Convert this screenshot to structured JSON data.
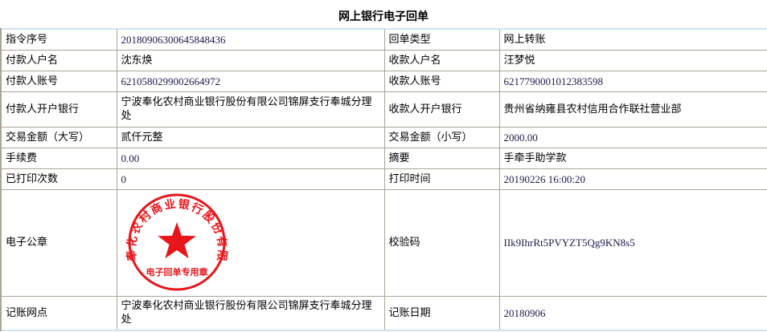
{
  "title": "网上银行电子回单",
  "rows": [
    {
      "l1": "指令序号",
      "v1": "20180906300645848436",
      "l2": "回单类型",
      "v2": "网上转账"
    },
    {
      "l1": "付款人户名",
      "v1": "沈东焕",
      "l2": "收款人户名",
      "v2": "汪梦悦"
    },
    {
      "l1": "付款人账号",
      "v1": "6210580299002664972",
      "l2": "收款人账号",
      "v2": "6217790001012383598"
    },
    {
      "l1": "付款人开户银行",
      "v1": "宁波奉化农村商业银行股份有限公司锦屏支行奉城分理处",
      "l2": "收款人开户银行",
      "v2": "贵州省纳雍县农村信用合作联社营业部"
    },
    {
      "l1": "交易金额（大写）",
      "v1": "贰仟元整",
      "l2": "交易金额（小写）",
      "v2": "2000.00"
    },
    {
      "l1": "手续费",
      "v1": "0.00",
      "l2": "摘要",
      "v2": "手牵手助学款"
    },
    {
      "l1": "已打印次数",
      "v1": "0",
      "l2": "打印时间",
      "v2": "20190226 16:00:20"
    },
    {
      "l1": "电子公章",
      "l2": "校验码",
      "v2": "IIk9IhrRt5PVYZT5Qg9KN8s5"
    },
    {
      "l1": "记账网点",
      "v1": "宁波奉化农村商业银行股份有限公司锦屏支行奉城分理处",
      "l2": "记账日期",
      "v2": "20180906"
    }
  ],
  "stamp": {
    "ring_text": "宁波奉化农村商业银行股份有限公司",
    "bottom_text": "电子回单专用章",
    "color": "#e8161b",
    "icon": "star-icon"
  }
}
